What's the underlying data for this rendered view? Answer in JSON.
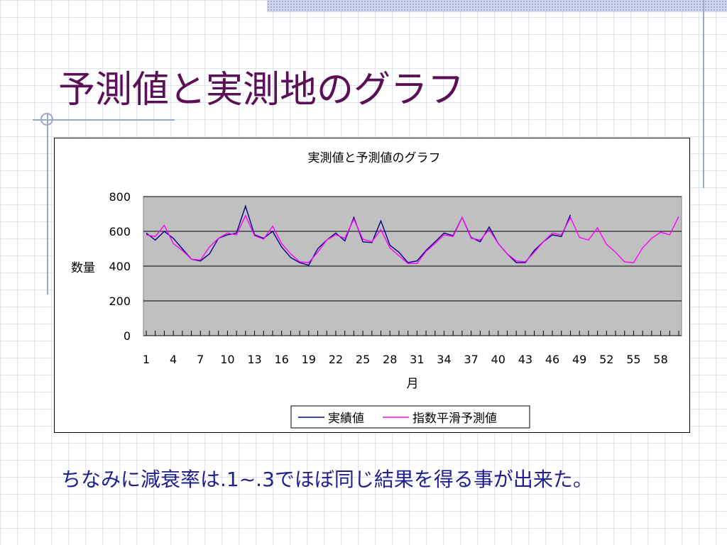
{
  "slide": {
    "title": "予測値と実測地のグラフ",
    "caption": "ちなみに減衰率は.1~.3でほぼ同じ結果を得る事が出来た。"
  },
  "colors": {
    "title": "#5b0f57",
    "caption": "#1f1f8f",
    "plot_background": "#c0c0c0",
    "actual_series": "#000080",
    "forecast_series": "#ff00ff"
  },
  "chart_data": {
    "type": "line",
    "title": "実測値と予測値のグラフ",
    "xlabel": "月",
    "ylabel": "数量",
    "ylim": [
      0,
      800
    ],
    "yticks": [
      0,
      200,
      400,
      600,
      800
    ],
    "xlim": [
      1,
      60
    ],
    "xtick_labels": [
      1,
      4,
      7,
      10,
      13,
      16,
      19,
      22,
      25,
      28,
      31,
      34,
      37,
      40,
      43,
      46,
      49,
      52,
      55,
      58
    ],
    "grid": true,
    "legend": "bottom-center",
    "series": [
      {
        "name": "実績値",
        "x": [
          1,
          2,
          3,
          4,
          5,
          6,
          7,
          8,
          9,
          10,
          11,
          12,
          13,
          14,
          15,
          16,
          17,
          18,
          19,
          20,
          21,
          22,
          23,
          24,
          25,
          26,
          27,
          28,
          29,
          30,
          31,
          32,
          33,
          34,
          35,
          36,
          37,
          38,
          39,
          40,
          41,
          42,
          43,
          44,
          45,
          46,
          47,
          48
        ],
        "values": [
          590,
          550,
          600,
          560,
          500,
          440,
          430,
          470,
          560,
          580,
          590,
          745,
          580,
          560,
          600,
          510,
          450,
          420,
          405,
          500,
          550,
          590,
          545,
          680,
          540,
          535,
          660,
          520,
          480,
          420,
          430,
          490,
          540,
          590,
          575,
          680,
          565,
          540,
          625,
          530,
          470,
          420,
          420,
          490,
          540,
          580,
          570,
          695
        ]
      },
      {
        "name": "指数平滑予測値",
        "x": [
          1,
          2,
          3,
          4,
          5,
          6,
          7,
          8,
          9,
          10,
          11,
          12,
          13,
          14,
          15,
          16,
          17,
          18,
          19,
          20,
          21,
          22,
          23,
          24,
          25,
          26,
          27,
          28,
          29,
          30,
          31,
          32,
          33,
          34,
          35,
          36,
          37,
          38,
          39,
          40,
          41,
          42,
          43,
          44,
          45,
          46,
          47,
          48,
          49,
          50,
          51,
          52,
          53,
          54,
          55,
          56,
          57,
          58,
          59,
          60
        ],
        "values": [
          580,
          570,
          635,
          530,
          490,
          440,
          435,
          510,
          560,
          590,
          580,
          690,
          575,
          555,
          630,
          530,
          470,
          425,
          420,
          480,
          550,
          580,
          560,
          670,
          555,
          540,
          610,
          505,
          460,
          415,
          415,
          485,
          530,
          580,
          570,
          680,
          560,
          550,
          610,
          530,
          470,
          430,
          425,
          480,
          540,
          590,
          580,
          680,
          565,
          550,
          620,
          525,
          480,
          425,
          420,
          505,
          560,
          595,
          580,
          685
        ]
      }
    ]
  }
}
